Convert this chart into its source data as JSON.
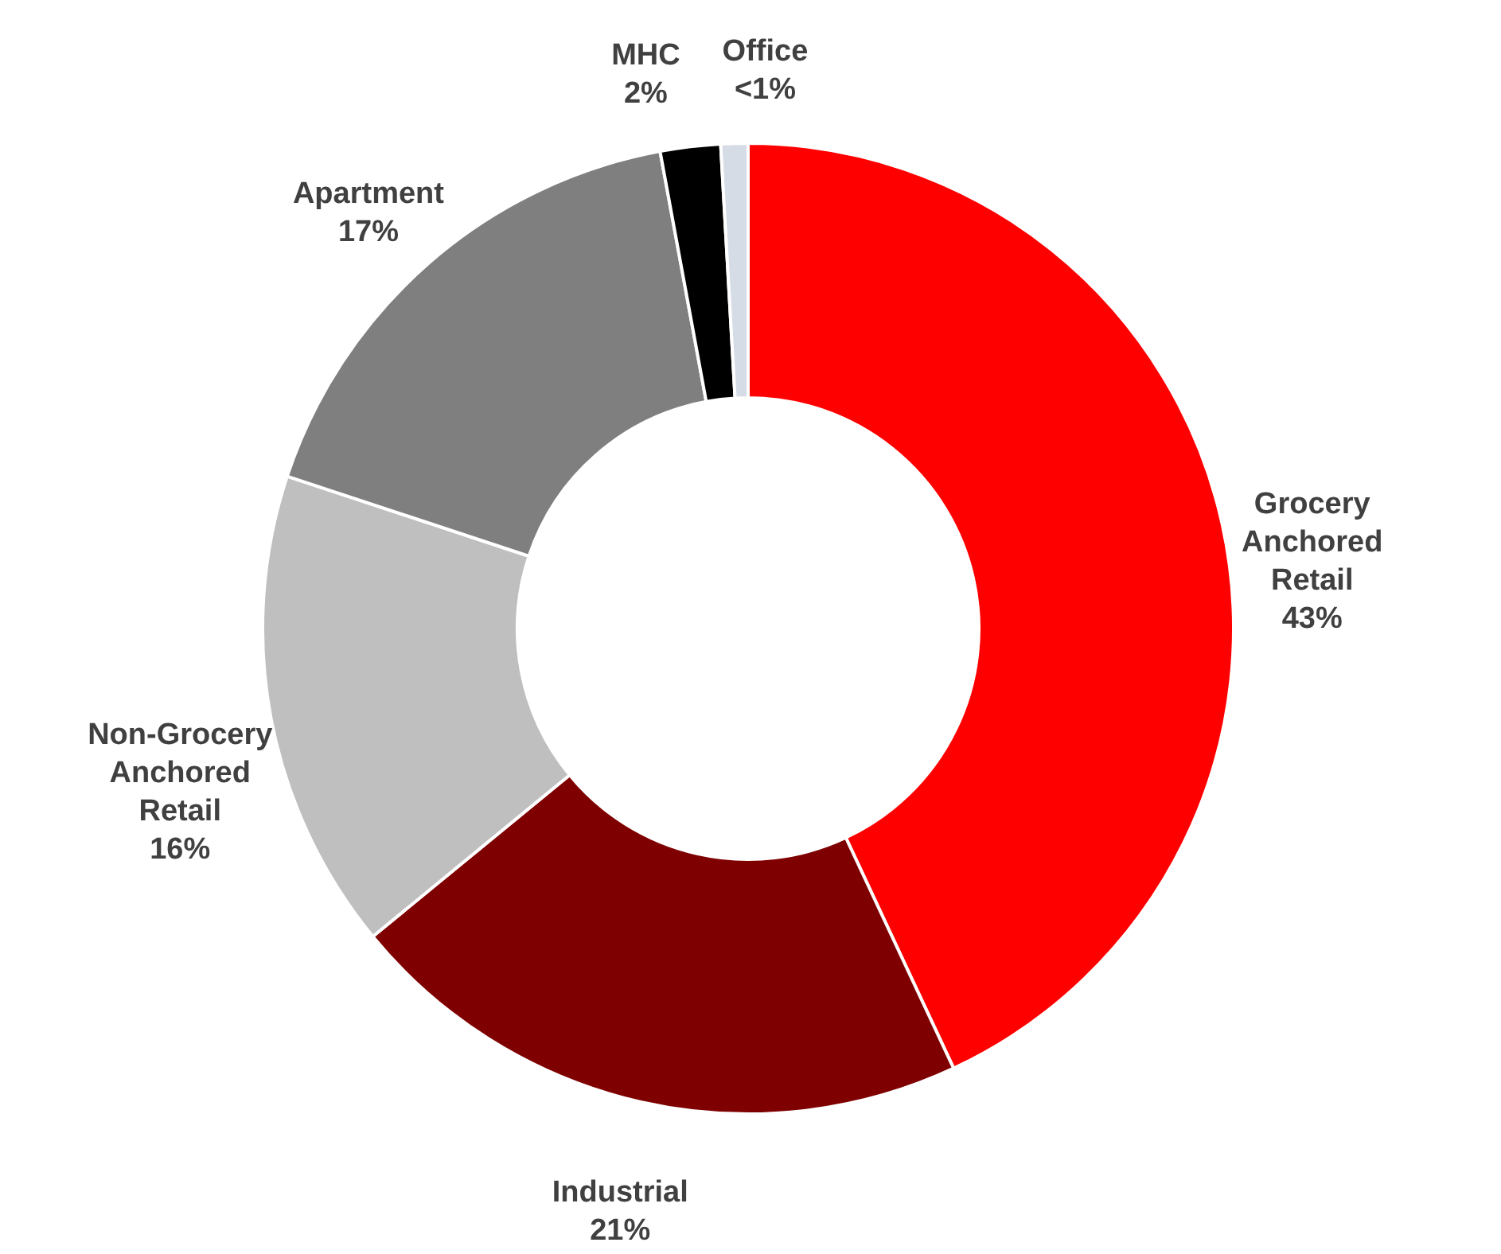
{
  "chart_data": {
    "type": "donut",
    "categories": [
      "Grocery Anchored Retail",
      "Industrial",
      "Non-Grocery Anchored Retail",
      "Apartment",
      "MHC",
      "Office"
    ],
    "values": [
      43,
      21,
      16,
      17,
      2,
      0.9
    ],
    "value_labels": [
      "43%",
      "21%",
      "16%",
      "17%",
      "2%",
      "<1%"
    ],
    "colors": [
      "#ff0000",
      "#7f0000",
      "#bfbfbf",
      "#7f7f7f",
      "#000000",
      "#d6dce5"
    ]
  }
}
